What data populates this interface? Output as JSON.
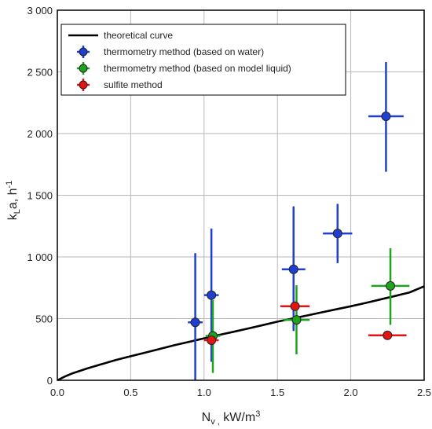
{
  "chart_data": {
    "type": "scatter",
    "xlabel": {
      "main": "N",
      "sub": "v ,",
      "unit": " kW/m",
      "sup": "3"
    },
    "ylabel": {
      "main": "k",
      "sub": "L",
      "unit": "a, h",
      "sup": "-1"
    },
    "xlim": [
      0,
      2.5
    ],
    "ylim": [
      0,
      3000
    ],
    "x_ticks": [
      0,
      0.5,
      1.0,
      1.5,
      2.0,
      2.5
    ],
    "x_tick_labels": [
      "0.0",
      "0.5",
      "1.0",
      "1.5",
      "2.0",
      "2.5"
    ],
    "y_ticks": [
      0,
      500,
      1000,
      1500,
      2000,
      2500,
      3000
    ],
    "y_tick_labels": [
      "0",
      "500",
      "1 000",
      "1 500",
      "2 000",
      "2 500",
      "3 000"
    ],
    "grid": true,
    "legend_position": "top-left",
    "curve": {
      "name": "theoretical curve",
      "color": "#000000",
      "points": [
        [
          0,
          0
        ],
        [
          0.05,
          30
        ],
        [
          0.1,
          55
        ],
        [
          0.2,
          95
        ],
        [
          0.3,
          130
        ],
        [
          0.4,
          165
        ],
        [
          0.5,
          195
        ],
        [
          0.6,
          225
        ],
        [
          0.7,
          255
        ],
        [
          0.8,
          285
        ],
        [
          0.9,
          312
        ],
        [
          1.0,
          340
        ],
        [
          1.1,
          367
        ],
        [
          1.2,
          393
        ],
        [
          1.3,
          420
        ],
        [
          1.4,
          447
        ],
        [
          1.5,
          475
        ],
        [
          1.6,
          500
        ],
        [
          1.7,
          525
        ],
        [
          1.8,
          550
        ],
        [
          1.9,
          575
        ],
        [
          2.0,
          600
        ],
        [
          2.1,
          627
        ],
        [
          2.2,
          655
        ],
        [
          2.3,
          683
        ],
        [
          2.4,
          712
        ],
        [
          2.5,
          762
        ]
      ]
    },
    "series": [
      {
        "name": "thermometry method (based on water)",
        "color": "#1f3fd1",
        "points": [
          {
            "x": 0.94,
            "y": 470,
            "xerr": 0.05,
            "ylo": 0,
            "yhi": 1030
          },
          {
            "x": 1.05,
            "y": 690,
            "xerr": 0.05,
            "ylo": 150,
            "yhi": 1230
          },
          {
            "x": 1.61,
            "y": 900,
            "xerr": 0.08,
            "ylo": 400,
            "yhi": 1410
          },
          {
            "x": 1.91,
            "y": 1190,
            "xerr": 0.1,
            "ylo": 950,
            "yhi": 1430
          },
          {
            "x": 2.24,
            "y": 2140,
            "xerr": 0.12,
            "ylo": 1690,
            "yhi": 2580
          }
        ]
      },
      {
        "name": "thermometry method (based on model liquid)",
        "color": "#1fa31f",
        "points": [
          {
            "x": 1.06,
            "y": 360,
            "xerr": 0.05,
            "ylo": 60,
            "yhi": 650
          },
          {
            "x": 1.63,
            "y": 490,
            "xerr": 0.09,
            "ylo": 210,
            "yhi": 770
          },
          {
            "x": 2.27,
            "y": 765,
            "xerr": 0.13,
            "ylo": 450,
            "yhi": 1070
          }
        ]
      },
      {
        "name": "sulfite method",
        "color": "#e41414",
        "points": [
          {
            "x": 1.05,
            "y": 325,
            "xerr": 0.05
          },
          {
            "x": 1.62,
            "y": 600,
            "xerr": 0.1
          },
          {
            "x": 2.25,
            "y": 365,
            "xerr": 0.13
          }
        ]
      }
    ]
  }
}
